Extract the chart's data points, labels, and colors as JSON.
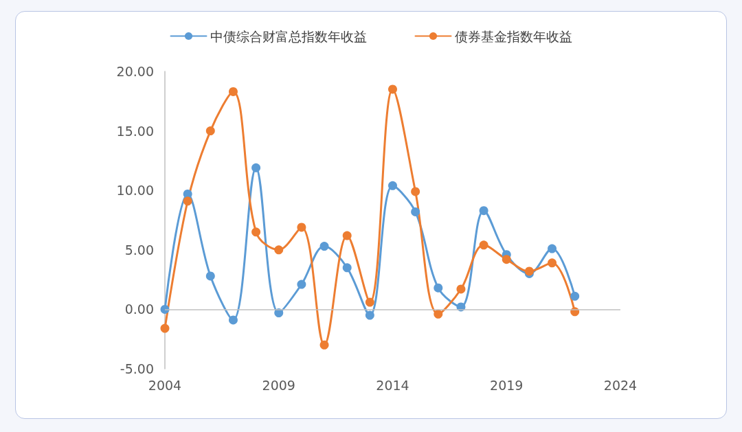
{
  "chart_data": {
    "type": "line",
    "x": [
      2004,
      2005,
      2006,
      2007,
      2008,
      2009,
      2010,
      2011,
      2012,
      2013,
      2014,
      2015,
      2016,
      2017,
      2018,
      2019,
      2020,
      2021,
      2022
    ],
    "series": [
      {
        "name": "中债综合财富总指数年收益",
        "color": "#5b9bd5",
        "values": [
          0.0,
          9.7,
          2.8,
          -0.9,
          11.9,
          -0.3,
          2.1,
          5.3,
          3.5,
          -0.5,
          10.4,
          8.2,
          1.8,
          0.2,
          8.3,
          4.6,
          3.0,
          5.1,
          1.1
        ]
      },
      {
        "name": "债券基金指数年收益",
        "color": "#ed7d31",
        "values": [
          -1.6,
          9.1,
          15.0,
          18.3,
          6.5,
          5.0,
          6.9,
          -3.0,
          6.2,
          0.6,
          18.5,
          9.9,
          -0.4,
          1.7,
          5.4,
          4.2,
          3.2,
          3.9,
          -0.2
        ]
      }
    ],
    "xlim": [
      2004,
      2024
    ],
    "xticks": [
      2004,
      2009,
      2014,
      2019,
      2024
    ],
    "ylim": [
      -5,
      20
    ],
    "yticks": [
      {
        "value": -5,
        "label": "-5.00"
      },
      {
        "value": 0,
        "label": "0.00"
      },
      {
        "value": 5,
        "label": "5.00"
      },
      {
        "value": 10,
        "label": "10.00"
      },
      {
        "value": 15,
        "label": "15.00"
      },
      {
        "value": 20,
        "label": "20.00"
      }
    ],
    "ref_lines": [
      {
        "axis": "y",
        "value": 0,
        "color": "#bfbfbf"
      }
    ],
    "grid": false,
    "legend": "top",
    "marker": "circle",
    "line_style": "solid"
  }
}
